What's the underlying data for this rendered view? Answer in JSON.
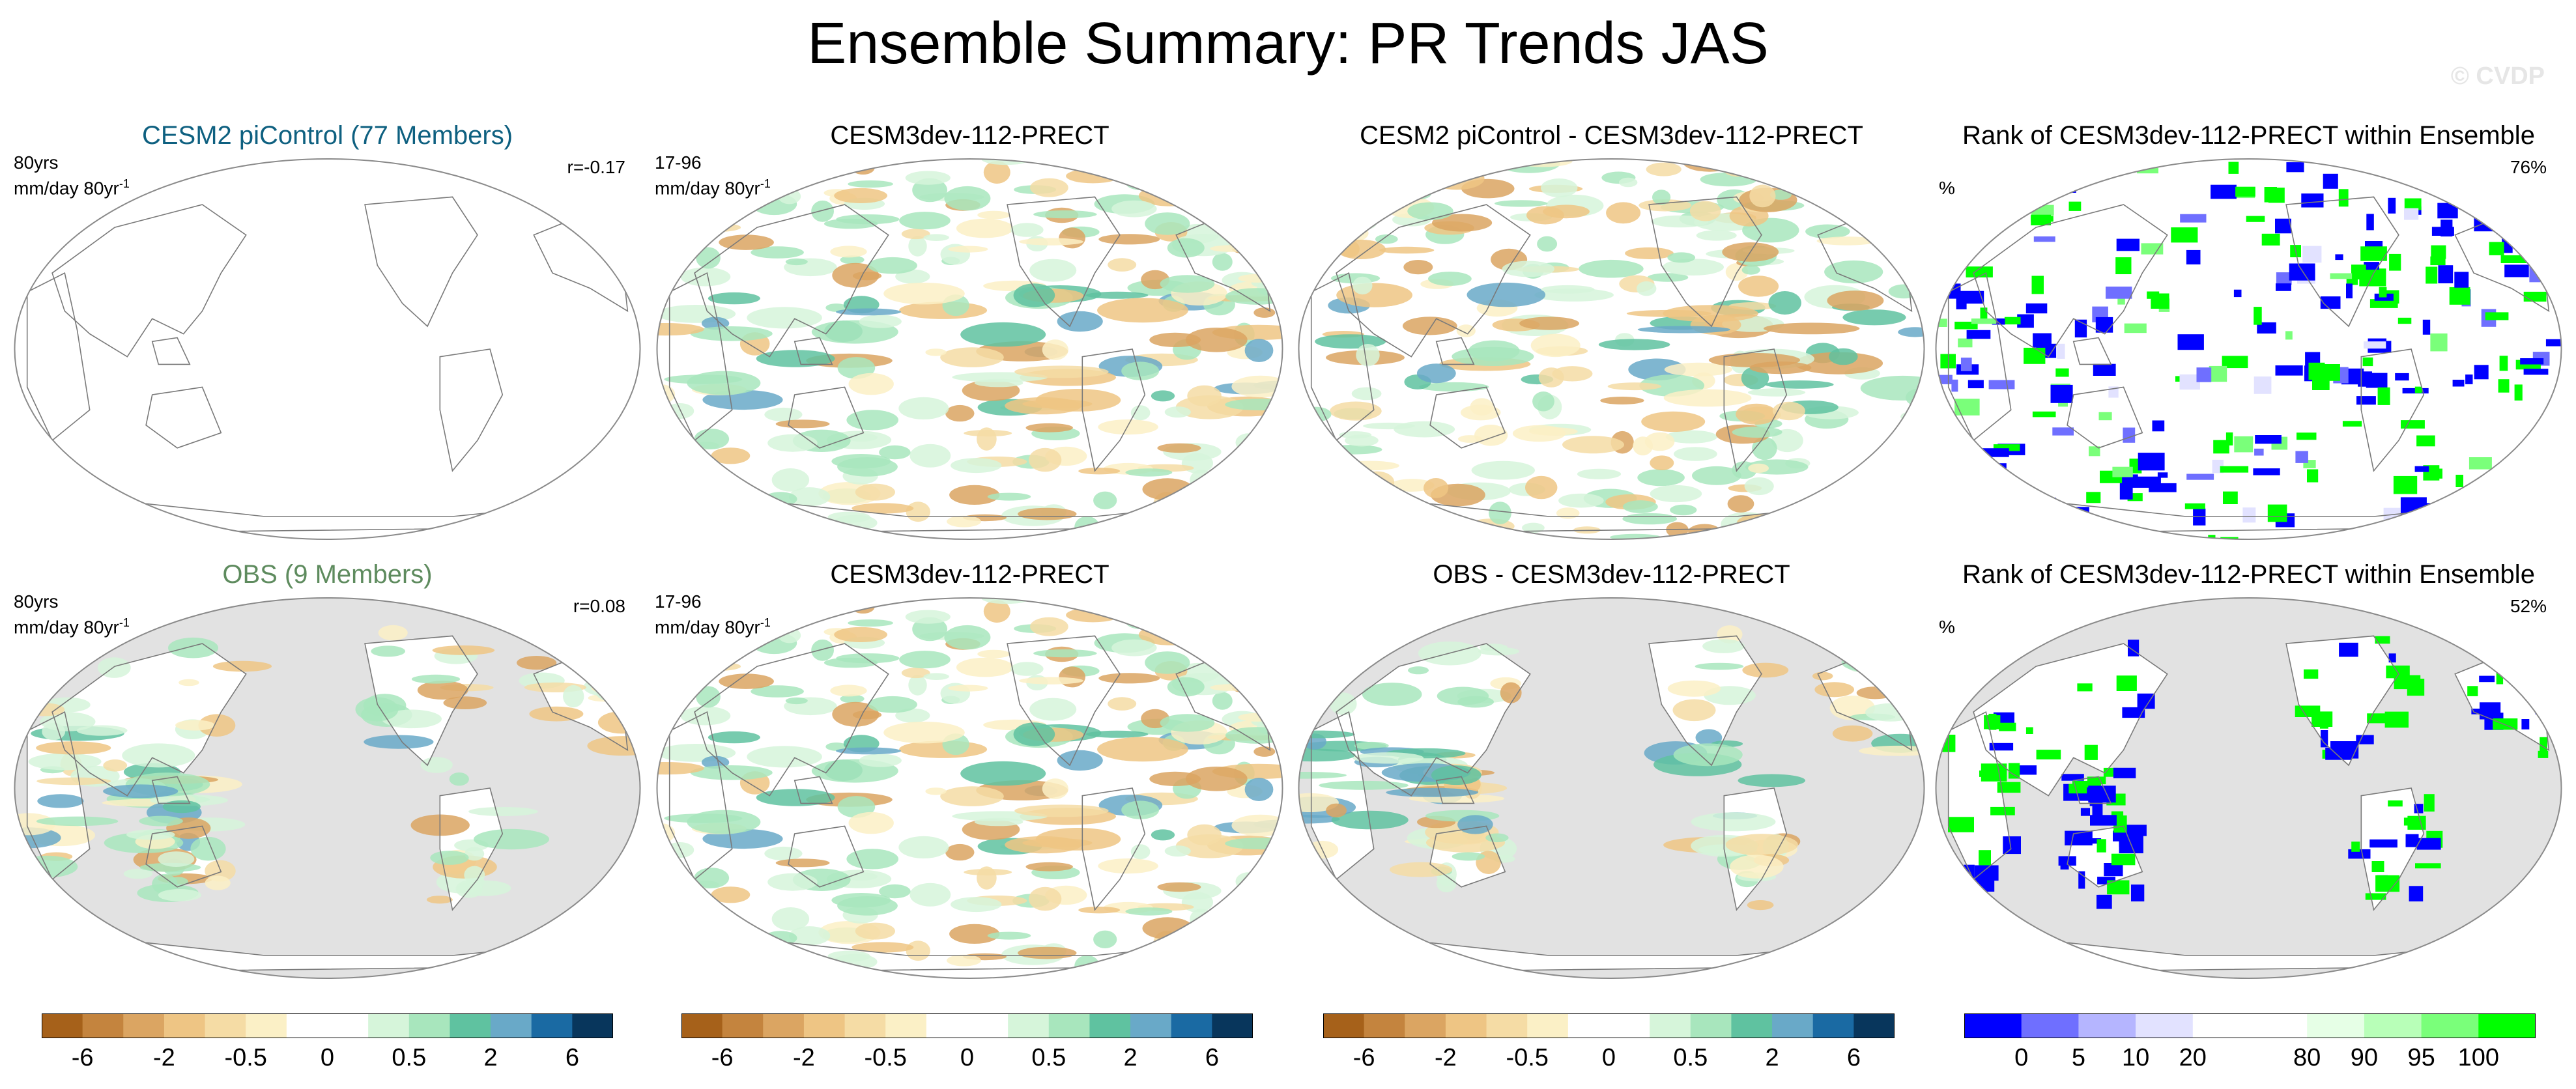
{
  "title": "Ensemble Summary: PR Trends JAS",
  "watermark": "© CVDP",
  "colors": {
    "ensemble_title": "#0e6080",
    "obs_title": "#5e8b5e",
    "land_gray": "#e2e2e2",
    "outline": "#7a7a7a"
  },
  "panels": {
    "r1c1": {
      "title": "CESM2 piControl (77 Members)",
      "period": "80yrs",
      "units": "mm/day 80yr",
      "units_sup": "-1",
      "right_label": "r=-0.17"
    },
    "r1c2": {
      "title": "CESM3dev-112-PRECT",
      "period": "17-96",
      "units": "mm/day 80yr",
      "units_sup": "-1"
    },
    "r1c3": {
      "title": "CESM2 piControl - CESM3dev-112-PRECT"
    },
    "r1c4": {
      "title": "Rank of CESM3dev-112-PRECT within Ensemble",
      "left_label": "%",
      "right_label": "76%"
    },
    "r2c1": {
      "title": "OBS (9 Members)",
      "period": "80yrs",
      "units": "mm/day 80yr",
      "units_sup": "-1",
      "right_label": "r=0.08"
    },
    "r2c2": {
      "title": "CESM3dev-112-PRECT",
      "period": "17-96",
      "units": "mm/day 80yr",
      "units_sup": "-1"
    },
    "r2c3": {
      "title": "OBS - CESM3dev-112-PRECT"
    },
    "r2c4": {
      "title": "Rank of CESM3dev-112-PRECT within Ensemble",
      "left_label": "%",
      "right_label": "52%"
    }
  },
  "colorbars": {
    "trend": {
      "colors": [
        "#a6611a",
        "#c4843e",
        "#dba562",
        "#eec584",
        "#f5dca5",
        "#fbf0c6",
        "#ffffff",
        "#ffffff",
        "#d6f5da",
        "#a8e6bd",
        "#5fc2a0",
        "#69a9c8",
        "#1a6aa3",
        "#08365c"
      ],
      "tick_labels": [
        "-6",
        "-2",
        "-0.5",
        "0",
        "0.5",
        "2",
        "6"
      ]
    },
    "rank": {
      "colors": [
        "#0000ff",
        "#6f6fff",
        "#b5b5ff",
        "#e2e2ff",
        "#ffffff",
        "#ffffff",
        "#e6ffe6",
        "#b8ffb8",
        "#7aff7a",
        "#00ff00"
      ],
      "tick_labels": [
        "0",
        "5",
        "10",
        "20",
        "80",
        "90",
        "95",
        "100"
      ]
    }
  }
}
